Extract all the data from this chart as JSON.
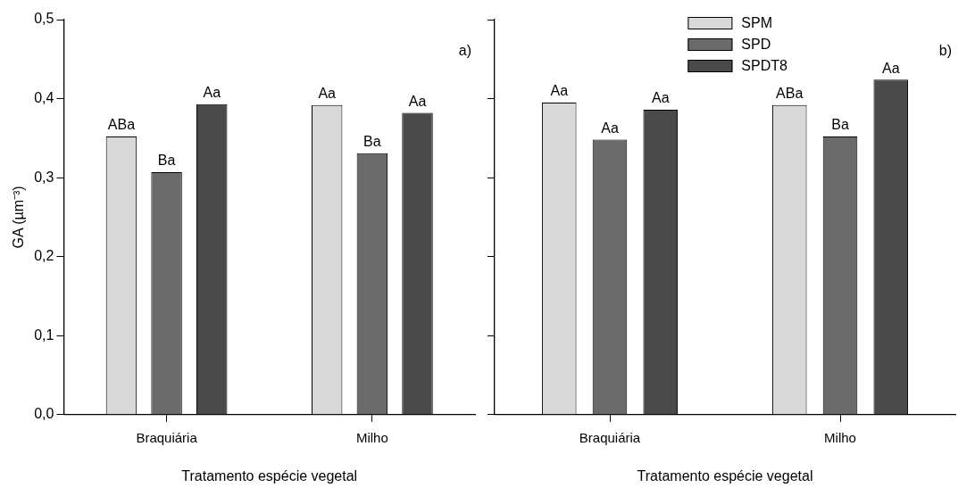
{
  "chart_data": [
    {
      "type": "bar",
      "xlabel": "Tratamento espécie vegetal",
      "ylabel": "GA (µm⁻³)",
      "categories": [
        "Braquiária",
        "Milho"
      ],
      "series": [
        {
          "color": "#d9d9d9",
          "values": [
            0.352,
            0.392
          ],
          "value_labels": [
            "ABa",
            "Aa"
          ]
        },
        {
          "color": "#6b6b6b",
          "values": [
            0.307,
            0.331
          ],
          "value_labels": [
            "Ba",
            "Ba"
          ]
        },
        {
          "color": "#4a4a4a",
          "values": [
            0.393,
            0.382
          ],
          "value_labels": [
            "Aa",
            "Aa"
          ]
        }
      ],
      "ylim": [
        0,
        0.5
      ],
      "yticks": [
        {
          "value": 0,
          "label": "0,0"
        },
        {
          "value": 0.1,
          "label": "0,1"
        },
        {
          "value": 0.2,
          "label": "0,2"
        },
        {
          "value": 0.3,
          "label": "0,3"
        },
        {
          "value": 0.4,
          "label": "0,4"
        },
        {
          "value": 0.5,
          "label": "0,5"
        }
      ],
      "grid": false,
      "legend": false,
      "annotations": [
        "a)"
      ]
    },
    {
      "type": "bar",
      "xlabel": "Tratamento espécie vegetal",
      "categories": [
        "Braquiária",
        "Milho"
      ],
      "series": [
        {
          "name": "SPM",
          "color": "#d9d9d9",
          "values": [
            0.395,
            0.392
          ],
          "value_labels": [
            "Aa",
            "ABa"
          ]
        },
        {
          "name": "SPD",
          "color": "#6b6b6b",
          "values": [
            0.348,
            0.352
          ],
          "value_labels": [
            "Aa",
            "Ba"
          ]
        },
        {
          "name": "SPDT8",
          "color": "#4a4a4a",
          "values": [
            0.386,
            0.424
          ],
          "value_labels": [
            "Aa",
            "Aa"
          ]
        }
      ],
      "ylim": [
        0,
        0.5
      ],
      "yticks": [
        {
          "value": 0,
          "label": null
        },
        {
          "value": 0.1,
          "label": null
        },
        {
          "value": 0.2,
          "label": null
        },
        {
          "value": 0.3,
          "label": null
        },
        {
          "value": 0.4,
          "label": null
        },
        {
          "value": 0.5,
          "label": null
        }
      ],
      "tick_labels": "x",
      "grid": false,
      "legend": "top",
      "annotations": [
        "b)"
      ]
    }
  ]
}
